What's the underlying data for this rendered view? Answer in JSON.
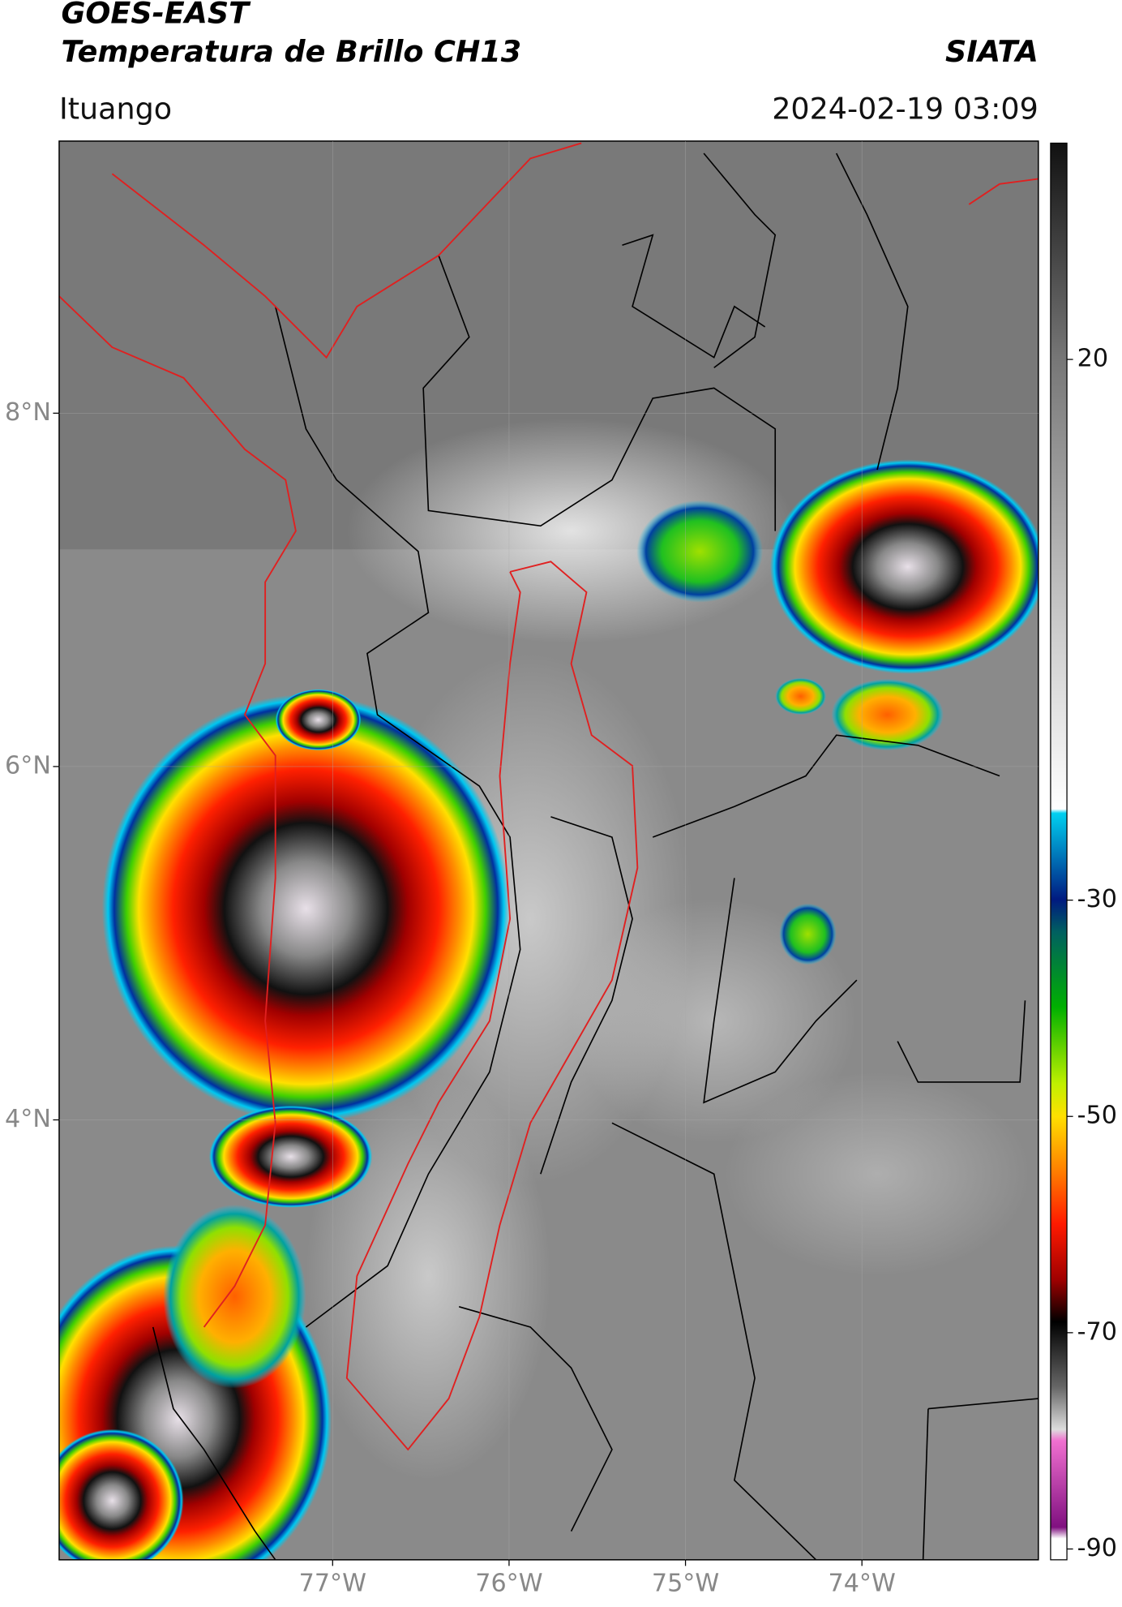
{
  "header": {
    "title_line1": "GOES-EAST",
    "title_line2": "Temperatura de Brillo CH13",
    "brand": "SIATA",
    "location": "Ituango",
    "datetime": "2024-02-19 03:09"
  },
  "map": {
    "lat_lim": [
      1.51,
      9.54
    ],
    "lon_lim": [
      -78.55,
      -73.0
    ],
    "lat_ticks": [
      {
        "value": 8,
        "label": "8°N"
      },
      {
        "value": 6,
        "label": "6°N"
      },
      {
        "value": 4,
        "label": "4°N"
      }
    ],
    "lon_ticks": [
      {
        "value": -77,
        "label": "77°W"
      },
      {
        "value": -76,
        "label": "76°W"
      },
      {
        "value": -75,
        "label": "75°W"
      },
      {
        "value": -74,
        "label": "74°W"
      }
    ]
  },
  "colorbar": {
    "lim": [
      -91,
      40
    ],
    "ticks": [
      20,
      -30,
      -50,
      -70,
      -90
    ]
  }
}
